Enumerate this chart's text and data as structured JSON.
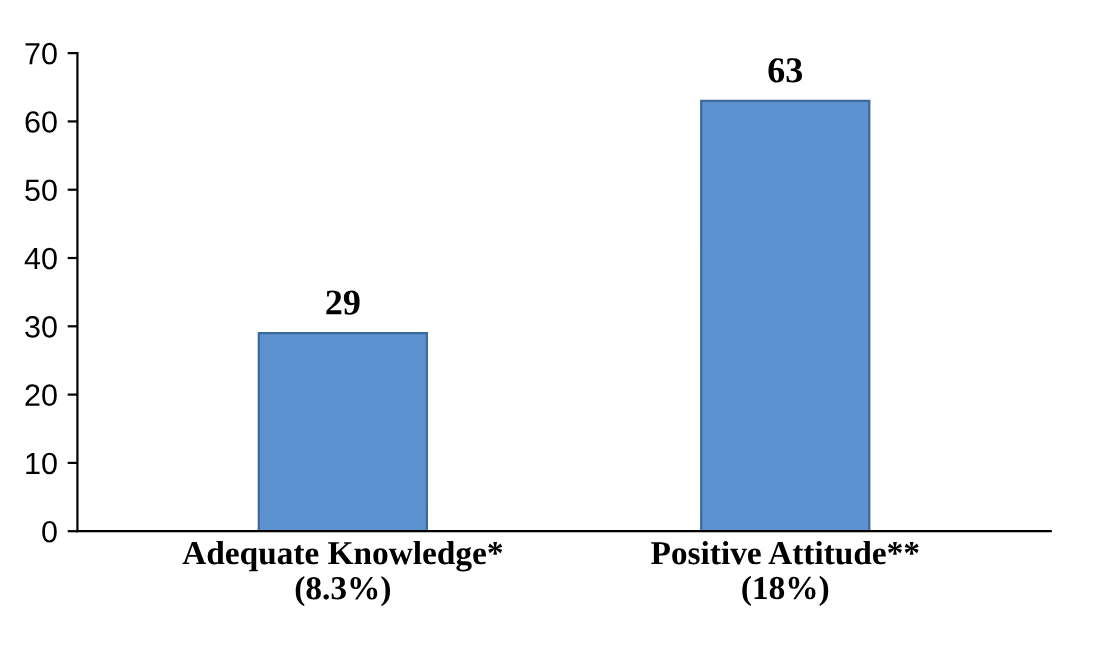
{
  "chart_data": {
    "type": "bar",
    "categories": [
      "Adequate Knowledge*\n(8.3%)",
      "Positive Attitude**\n(18%)"
    ],
    "values": [
      29,
      63
    ],
    "color": "#5b92cf",
    "ylim": [
      0,
      70
    ],
    "yticks": [
      0,
      10,
      20,
      30,
      40,
      50,
      60,
      70
    ],
    "data_labels": true,
    "grid": false,
    "legend": false
  }
}
